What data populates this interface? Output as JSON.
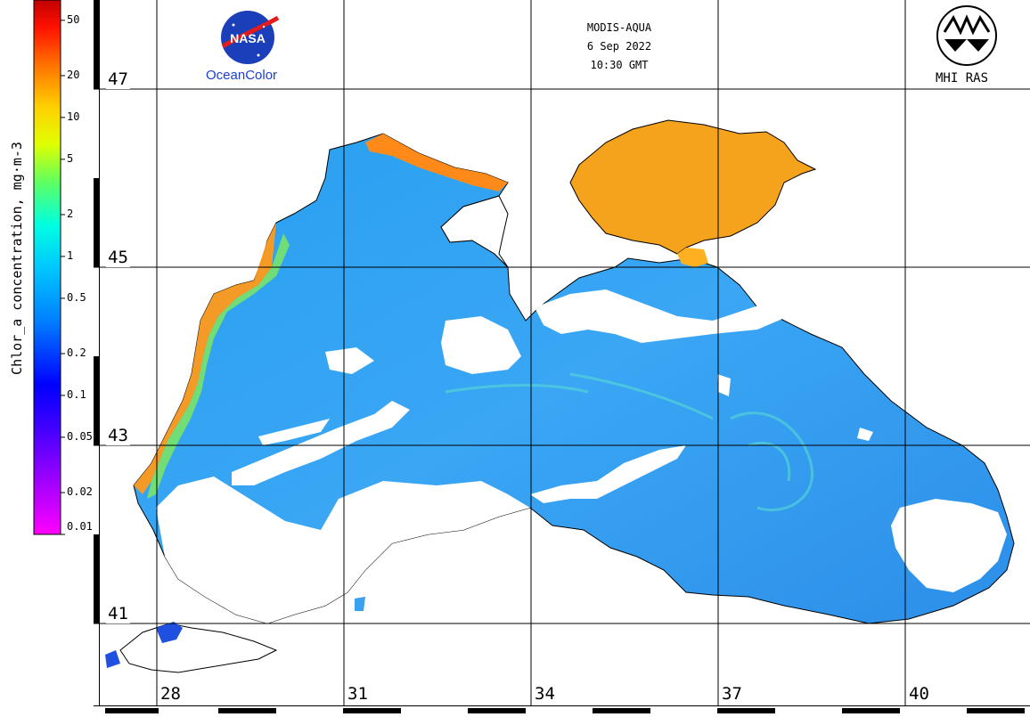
{
  "header": {
    "sensor": "MODIS-AQUA",
    "date": "6 Sep 2022",
    "time": "10:30 GMT"
  },
  "logos": {
    "nasa": "NASA",
    "oceancolor": "OceanColor",
    "mhi": "MHI RAS"
  },
  "colorbar": {
    "title": "Chlor_a concentration, mg·m-3",
    "ticks": [
      "50",
      "20",
      "10",
      "5",
      "2",
      "1",
      "0.5",
      "0.2",
      "0.1",
      "0.05",
      "0.02",
      "0.01"
    ],
    "scale": "log",
    "colors": [
      "#ff00ff",
      "#8000ff",
      "#0000ff",
      "#0080ff",
      "#00e0ff",
      "#00ff80",
      "#c0ff00",
      "#ffff00",
      "#ffa000",
      "#ff4000",
      "#d00000"
    ]
  },
  "grid": {
    "latitudes": [
      "47",
      "45",
      "43",
      "41"
    ],
    "longitudes": [
      "28",
      "31",
      "34",
      "37",
      "40"
    ]
  },
  "map": {
    "region": "Black Sea and Sea of Azov",
    "land_color": "#ffffff",
    "cloud_color": "#ffffff",
    "open_sea_color": "#2f9cf0",
    "azov_color": "#f4a020",
    "coastal_bloom_color": "#ff8c1a"
  }
}
